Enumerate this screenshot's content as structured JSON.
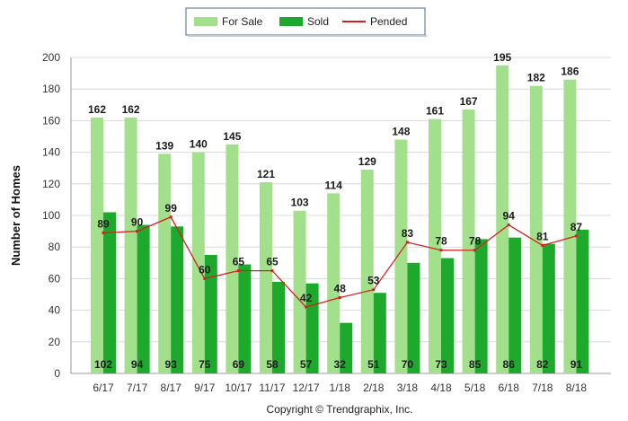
{
  "chart_data": {
    "type": "bar",
    "ylabel": "Number of Homes",
    "ylim": [
      0,
      200
    ],
    "yticks": [
      0,
      20,
      40,
      60,
      80,
      100,
      120,
      140,
      160,
      180,
      200
    ],
    "grid": true,
    "legend_position": "top-center",
    "categories": [
      "6/17",
      "7/17",
      "8/17",
      "9/17",
      "10/17",
      "11/17",
      "12/17",
      "1/18",
      "2/18",
      "3/18",
      "4/18",
      "5/18",
      "6/18",
      "7/18",
      "8/18"
    ],
    "series": [
      {
        "name": "For Sale",
        "type": "bar",
        "color": "#a3e08c",
        "values": [
          162,
          162,
          139,
          140,
          145,
          121,
          103,
          114,
          129,
          148,
          161,
          167,
          195,
          182,
          186
        ]
      },
      {
        "name": "Sold",
        "type": "bar",
        "color": "#1daa2c",
        "values": [
          102,
          94,
          93,
          75,
          69,
          58,
          57,
          32,
          51,
          70,
          73,
          85,
          86,
          82,
          91
        ]
      },
      {
        "name": "Pended",
        "type": "line",
        "color": "#d41f1f",
        "values": [
          89,
          90,
          99,
          60,
          65,
          65,
          42,
          48,
          53,
          83,
          78,
          78,
          94,
          81,
          87
        ]
      }
    ]
  },
  "footer": {
    "copyright": "Copyright © Trendgraphix, Inc."
  }
}
